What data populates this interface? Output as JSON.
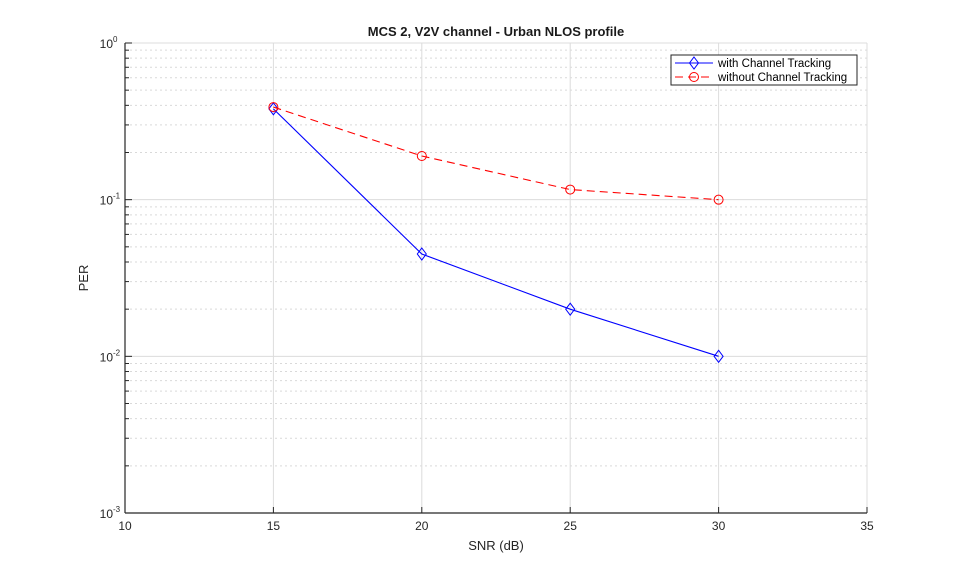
{
  "chart_data": {
    "type": "line",
    "title": "MCS 2, V2V channel - Urban NLOS profile",
    "xlabel": "SNR (dB)",
    "ylabel": "PER",
    "xlim": [
      10,
      35
    ],
    "ylim": [
      0.001,
      1
    ],
    "yscale": "log",
    "grid": true,
    "minor_grid": true,
    "legend_position": "northeast",
    "x_ticks": [
      10,
      15,
      20,
      25,
      30,
      35
    ],
    "y_ticks": [
      {
        "base": "10",
        "exp": "-3",
        "value": 0.001
      },
      {
        "base": "10",
        "exp": "-2",
        "value": 0.01
      },
      {
        "base": "10",
        "exp": "-1",
        "value": 0.1
      },
      {
        "base": "10",
        "exp": "0",
        "value": 1
      }
    ],
    "x": [
      15,
      20,
      25,
      30
    ],
    "series": [
      {
        "name": "with Channel Tracking",
        "color": "#0000ff",
        "linestyle": "solid",
        "marker": "diamond",
        "values": [
          0.38,
          0.045,
          0.02,
          0.01
        ]
      },
      {
        "name": "without Channel Tracking",
        "color": "#ff0000",
        "linestyle": "dashed",
        "marker": "circle",
        "values": [
          0.39,
          0.19,
          0.116,
          0.1
        ]
      }
    ]
  }
}
